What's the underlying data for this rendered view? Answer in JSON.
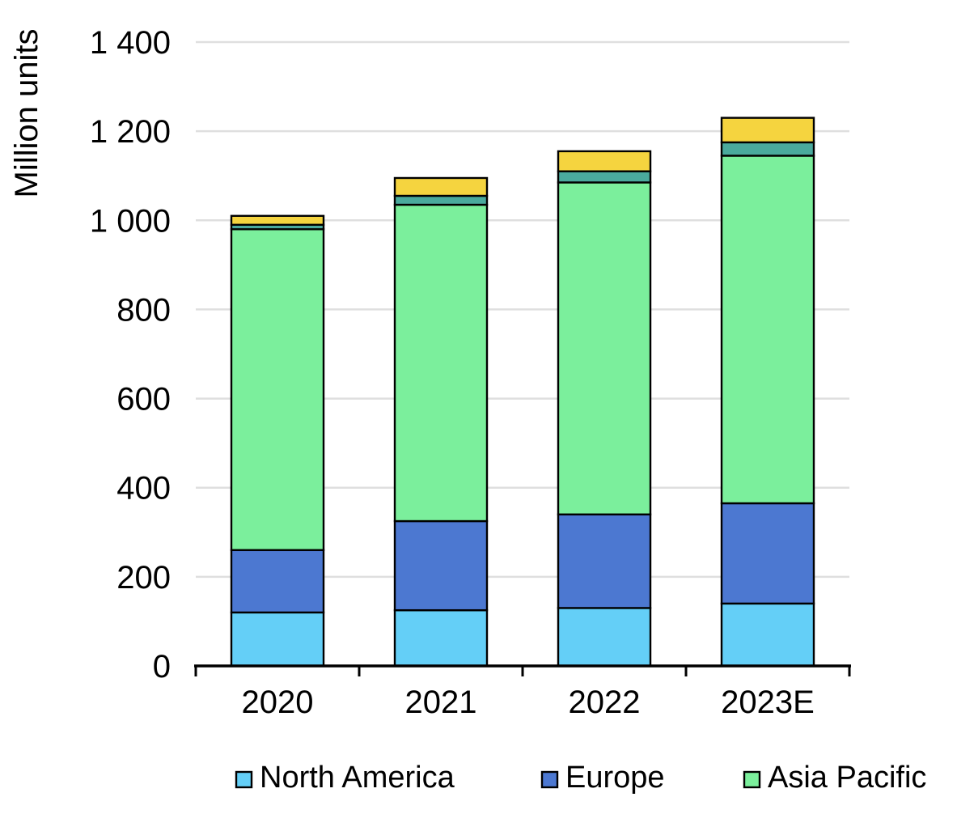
{
  "chart_data": {
    "type": "bar",
    "stacked": true,
    "title": "",
    "xlabel": "",
    "ylabel": "Million units",
    "categories": [
      "2020",
      "2021",
      "2022",
      "2023E"
    ],
    "series": [
      {
        "name": "North America",
        "color": "#64CFF7",
        "in_legend": true,
        "values": [
          120,
          125,
          130,
          140
        ]
      },
      {
        "name": "Europe",
        "color": "#4C78D1",
        "in_legend": true,
        "values": [
          140,
          200,
          210,
          225
        ]
      },
      {
        "name": "Asia Pacific",
        "color": "#7BEF9C",
        "in_legend": true,
        "values": [
          720,
          710,
          745,
          780
        ]
      },
      {
        "name": "Unlabeled segment (teal)",
        "color": "#4AAA9D",
        "in_legend": false,
        "values": [
          10,
          20,
          25,
          30
        ]
      },
      {
        "name": "Unlabeled segment (yellow)",
        "color": "#F5D43F",
        "in_legend": false,
        "values": [
          20,
          40,
          45,
          55
        ]
      }
    ],
    "totals": [
      1010,
      1095,
      1155,
      1230
    ],
    "ylim": [
      0,
      1400
    ],
    "ytick_interval": 200,
    "ytick_labels": [
      "0",
      "200",
      "400",
      "600",
      "800",
      "1 000",
      "1 200",
      "1 400"
    ],
    "grid": true,
    "legend_position": "bottom",
    "legend_entries": [
      "North America",
      "Europe",
      "Asia Pacific"
    ],
    "colors": {
      "background": "#FFFFFF",
      "grid": "#DFDFDF",
      "axis": "#000000",
      "bar_border": "#000000",
      "text": "#000000"
    }
  }
}
